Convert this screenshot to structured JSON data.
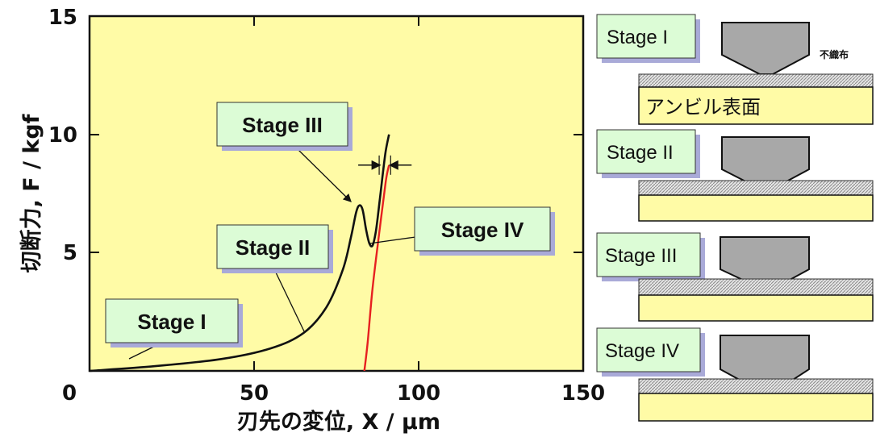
{
  "chart_data": {
    "type": "line",
    "xlabel": "刃先の変位, X / μm",
    "ylabel": "切断力, F / kgf",
    "xlim": [
      0,
      150
    ],
    "ylim": [
      0,
      15
    ],
    "x_ticks": [
      "0",
      "50",
      "100",
      "150"
    ],
    "y_ticks": [
      "5",
      "10",
      "15"
    ],
    "y_zero_label": "0",
    "grid": false,
    "series": [
      {
        "color": "#111111",
        "x": [
          0,
          20,
          40,
          55,
          65,
          72,
          77,
          79.5,
          81,
          82,
          83,
          84,
          85,
          86,
          87,
          88,
          89,
          90,
          91
        ],
        "y": [
          0,
          0.2,
          0.5,
          0.95,
          1.6,
          2.7,
          4.3,
          5.7,
          6.7,
          7.0,
          6.8,
          6.0,
          5.4,
          5.3,
          5.9,
          7.0,
          8.2,
          9.3,
          10.0
        ]
      },
      {
        "color": "#e62020",
        "x": [
          83.5,
          84.5,
          86,
          88,
          90,
          91
        ],
        "y": [
          0,
          1.2,
          3.5,
          5.8,
          8.0,
          8.7
        ]
      }
    ],
    "dimension_marker": {
      "x1": 88.5,
      "x2": 91,
      "y": 8.7
    },
    "callouts": [
      {
        "label": "Stage I",
        "target_x": 22,
        "target_y": 1.0
      },
      {
        "label": "Stage II",
        "target_x": 64,
        "target_y": 1.6
      },
      {
        "label": "Stage III",
        "target_x": 81,
        "target_y": 7.0
      },
      {
        "label": "Stage IV",
        "target_x": 84,
        "target_y": 5.4
      }
    ]
  },
  "stage_panels": [
    {
      "label": "Stage I",
      "nonwoven_label": "不織布",
      "anvil_label": "アンビル表面"
    },
    {
      "label": "Stage II"
    },
    {
      "label": "Stage III"
    },
    {
      "label": "Stage IV"
    }
  ],
  "colors": {
    "plot_bg": "#fffba6",
    "label_box": "#dcfcd6",
    "label_shadow": "#a9aad8",
    "blade": "#a8a8a8",
    "fabric": "#e4e4e4",
    "anvil": "#fffba6",
    "red_curve": "#e62020"
  }
}
